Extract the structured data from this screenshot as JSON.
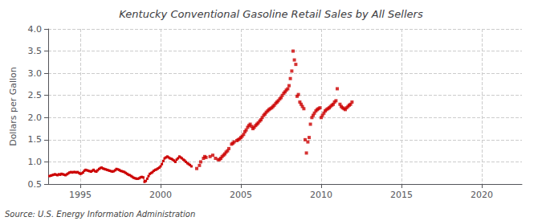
{
  "chart_data": {
    "type": "line",
    "title": "Kentucky Conventional Gasoline Retail Sales by All Sellers",
    "ylabel": "Dollars per Gallon",
    "annotation": "Source: U.S. Energy Information Administration",
    "xlim": [
      1993.0,
      2022.5
    ],
    "ylim": [
      0.5,
      4.0
    ],
    "xticks": [
      1995,
      2000,
      2005,
      2010,
      2015,
      2020
    ],
    "yticks": [
      0.5,
      {
        "value": 1.0,
        "label": "1.0"
      },
      1.5,
      {
        "value": 2.0,
        "label": "2.0"
      },
      2.5,
      {
        "value": 3.0,
        "label": "3.0"
      },
      3.5,
      {
        "value": 4.0,
        "label": "4.0"
      }
    ],
    "grid": true,
    "series": [
      {
        "type": "line",
        "color": "#CC0000",
        "marker": "square",
        "x": [
          1993.08,
          1993.17,
          1993.25,
          1993.33,
          1993.42,
          1993.5,
          1993.58,
          1993.67,
          1993.75,
          1993.83,
          1993.92,
          1994.0,
          1994.08,
          1994.17,
          1994.25,
          1994.33,
          1994.42,
          1994.5,
          1994.58,
          1994.67,
          1994.75,
          1994.83,
          1994.92,
          1995.0,
          1995.08,
          1995.17,
          1995.25,
          1995.33,
          1995.42,
          1995.5,
          1995.58,
          1995.67,
          1995.75,
          1995.83,
          1995.92,
          1996.0,
          1996.08,
          1996.17,
          1996.25,
          1996.33,
          1996.42,
          1996.5,
          1996.58,
          1996.67,
          1996.75,
          1996.83,
          1996.92,
          1997.0,
          1997.08,
          1997.17,
          1997.25,
          1997.33,
          1997.42,
          1997.5,
          1997.58,
          1997.67,
          1997.75,
          1997.83,
          1997.92,
          1998.0,
          1998.08,
          1998.17,
          1998.25,
          1998.33,
          1998.42,
          1998.5,
          1998.58,
          1998.67,
          1998.75,
          1998.83,
          1998.92,
          1999.0,
          1999.08,
          1999.17,
          1999.25,
          1999.33,
          1999.42,
          1999.5,
          1999.58,
          1999.67,
          1999.75,
          1999.83,
          1999.92,
          2000.0,
          2000.08,
          2000.17,
          2000.25,
          2000.33,
          2000.42,
          2000.5,
          2000.58,
          2000.67,
          2000.75,
          2000.83,
          2000.92,
          2001.0,
          2001.08,
          2001.17,
          2001.25,
          2001.33,
          2001.42,
          2001.5,
          2001.58,
          2001.67,
          2001.75,
          2001.83,
          2001.92
        ],
        "values": [
          0.68,
          0.69,
          0.7,
          0.71,
          0.72,
          0.71,
          0.7,
          0.72,
          0.71,
          0.73,
          0.72,
          0.71,
          0.7,
          0.72,
          0.74,
          0.76,
          0.77,
          0.76,
          0.77,
          0.77,
          0.76,
          0.77,
          0.75,
          0.73,
          0.74,
          0.76,
          0.8,
          0.82,
          0.81,
          0.8,
          0.79,
          0.78,
          0.8,
          0.82,
          0.79,
          0.78,
          0.81,
          0.84,
          0.86,
          0.87,
          0.85,
          0.84,
          0.83,
          0.82,
          0.81,
          0.8,
          0.79,
          0.78,
          0.79,
          0.81,
          0.84,
          0.83,
          0.82,
          0.8,
          0.79,
          0.78,
          0.77,
          0.75,
          0.73,
          0.71,
          0.7,
          0.68,
          0.66,
          0.64,
          0.63,
          0.62,
          0.62,
          0.63,
          0.65,
          0.66,
          0.65,
          0.55,
          0.57,
          0.62,
          0.68,
          0.73,
          0.75,
          0.77,
          0.8,
          0.82,
          0.83,
          0.85,
          0.87,
          0.9,
          0.95,
          1.02,
          1.08,
          1.1,
          1.12,
          1.1,
          1.08,
          1.07,
          1.05,
          1.03,
          1.0,
          1.05,
          1.08,
          1.12,
          1.1,
          1.08,
          1.05,
          1.03,
          1.0,
          0.97,
          0.95,
          0.93,
          0.9
        ]
      },
      {
        "type": "scatter",
        "color": "#CC0000",
        "marker": "square",
        "x": [
          2002.25,
          2002.42,
          2002.5,
          2002.67,
          2002.75,
          2002.83,
          2003.08,
          2003.25,
          2003.42,
          2003.58,
          2003.67,
          2003.75,
          2003.83,
          2003.92,
          2004.0,
          2004.08,
          2004.17,
          2004.25,
          2004.42,
          2004.5,
          2004.58,
          2004.75,
          2004.83,
          2004.92,
          2005.0,
          2005.08,
          2005.17,
          2005.25,
          2005.33,
          2005.42,
          2005.5,
          2005.58,
          2005.67,
          2005.75,
          2005.83,
          2005.92,
          2006.0,
          2006.08,
          2006.17,
          2006.25,
          2006.33,
          2006.42,
          2006.5,
          2006.58,
          2006.67,
          2006.75,
          2006.83,
          2006.92,
          2007.0,
          2007.08,
          2007.17,
          2007.25,
          2007.33,
          2007.42,
          2007.5,
          2007.58,
          2007.67,
          2007.75,
          2007.83,
          2007.92,
          2008.0,
          2008.08,
          2008.17,
          2008.25,
          2008.33,
          2008.42,
          2008.5,
          2008.58,
          2008.67,
          2008.75,
          2008.83,
          2008.92,
          2009.0,
          2009.08,
          2009.17,
          2009.25,
          2009.33,
          2009.42,
          2009.5,
          2009.58,
          2009.67,
          2009.75,
          2009.83,
          2009.92,
          2010.0,
          2010.08,
          2010.17,
          2010.25,
          2010.33,
          2010.42,
          2010.5,
          2010.58,
          2010.67,
          2010.75,
          2010.83,
          2010.92,
          2011.0,
          2011.17,
          2011.25,
          2011.33,
          2011.42,
          2011.5,
          2011.58,
          2011.67,
          2011.75,
          2011.83,
          2011.92
        ],
        "values": [
          0.85,
          0.92,
          1.0,
          1.08,
          1.12,
          1.1,
          1.12,
          1.15,
          1.08,
          1.05,
          1.05,
          1.08,
          1.12,
          1.15,
          1.18,
          1.22,
          1.25,
          1.3,
          1.4,
          1.42,
          1.45,
          1.48,
          1.5,
          1.52,
          1.55,
          1.58,
          1.62,
          1.68,
          1.72,
          1.78,
          1.82,
          1.85,
          1.8,
          1.75,
          1.78,
          1.82,
          1.85,
          1.88,
          1.92,
          1.95,
          2.0,
          2.05,
          2.08,
          2.12,
          2.15,
          2.18,
          2.2,
          2.22,
          2.25,
          2.28,
          2.32,
          2.35,
          2.38,
          2.42,
          2.45,
          2.5,
          2.55,
          2.58,
          2.62,
          2.65,
          2.72,
          2.88,
          3.05,
          3.5,
          3.3,
          3.2,
          2.48,
          2.52,
          2.35,
          2.3,
          2.25,
          2.2,
          1.5,
          1.2,
          1.45,
          1.55,
          1.85,
          2.0,
          2.05,
          2.1,
          2.15,
          2.18,
          2.2,
          2.22,
          2.0,
          2.05,
          2.1,
          2.15,
          2.18,
          2.2,
          2.22,
          2.25,
          2.28,
          2.3,
          2.35,
          2.38,
          2.65,
          2.3,
          2.25,
          2.22,
          2.2,
          2.18,
          2.22,
          2.25,
          2.28,
          2.3,
          2.35
        ]
      }
    ]
  }
}
